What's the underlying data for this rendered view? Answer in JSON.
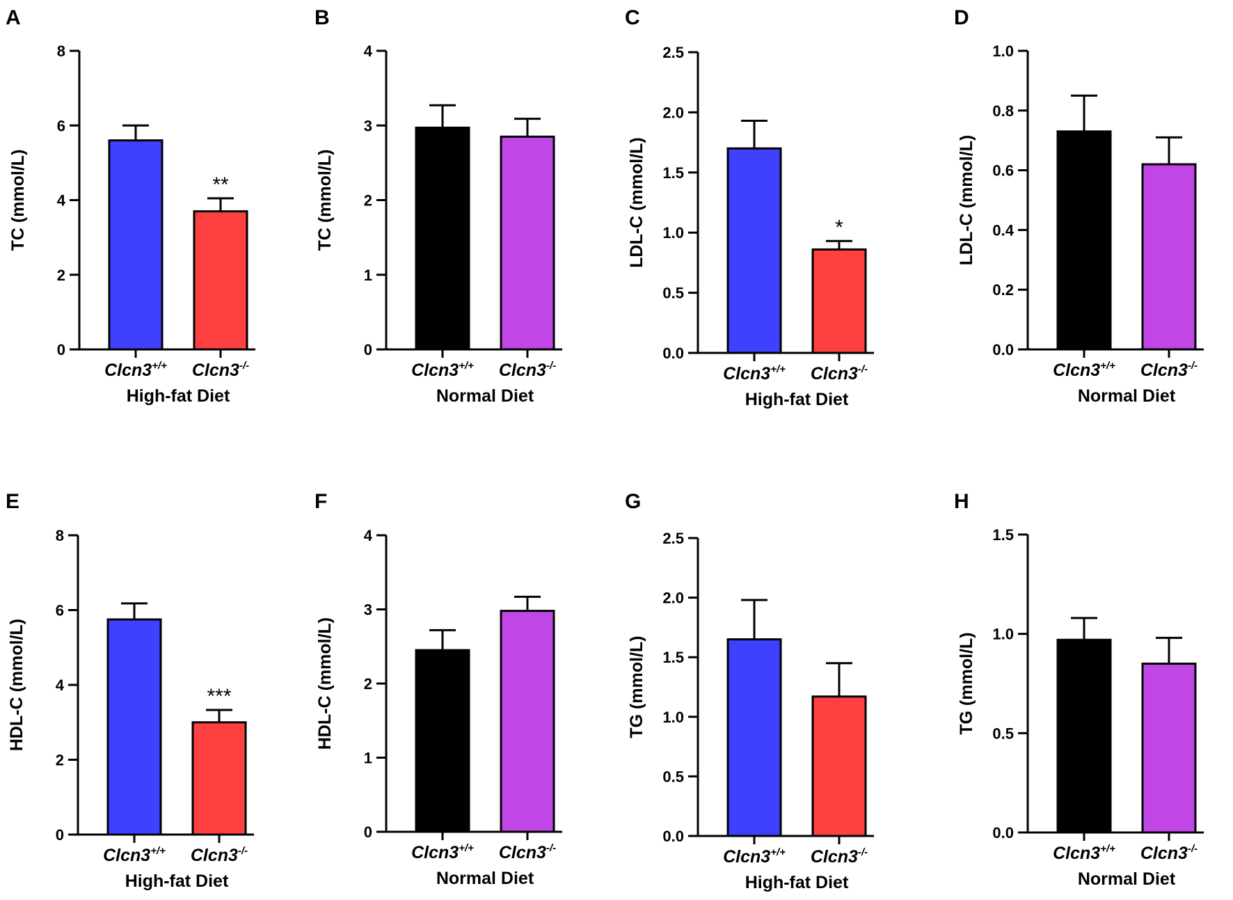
{
  "figure": {
    "colors": {
      "wt_hfd": "#4040ff",
      "ko_hfd": "#ff4040",
      "wt_nd": "#000000",
      "ko_nd": "#c046e6",
      "axis": "#000000"
    }
  },
  "chart_data": [
    {
      "panel": "A",
      "type": "bar",
      "ylabel": "TC (mmol/L)",
      "group": "High-fat Diet",
      "ylim": [
        0,
        8
      ],
      "yticks": [
        "0",
        "2",
        "4",
        "6",
        "8"
      ],
      "categories": [
        {
          "base": "Clcn3",
          "sup": "+/+",
          "value": 5.6,
          "error": 0.4,
          "color": "#4040ff",
          "sig": ""
        },
        {
          "base": "Clcn3",
          "sup": "-/-",
          "value": 3.7,
          "error": 0.35,
          "color": "#ff4040",
          "sig": "**"
        }
      ]
    },
    {
      "panel": "B",
      "type": "bar",
      "ylabel": "TC (mmol/L)",
      "group": "Normal Diet",
      "ylim": [
        0,
        4
      ],
      "yticks": [
        "0",
        "1",
        "2",
        "3",
        "4"
      ],
      "categories": [
        {
          "base": "Clcn3",
          "sup": "+/+",
          "value": 2.97,
          "error": 0.3,
          "color": "#000000",
          "sig": ""
        },
        {
          "base": "Clcn3",
          "sup": "-/-",
          "value": 2.85,
          "error": 0.24,
          "color": "#c046e6",
          "sig": ""
        }
      ]
    },
    {
      "panel": "C",
      "type": "bar",
      "ylabel": "LDL-C (mmol/L)",
      "group": "High-fat Diet",
      "ylim": [
        0,
        2.5
      ],
      "yticks": [
        "0.0",
        "0.5",
        "1.0",
        "1.5",
        "2.0",
        "2.5"
      ],
      "categories": [
        {
          "base": "Clcn3",
          "sup": "+/+",
          "value": 1.7,
          "error": 0.23,
          "color": "#4040ff",
          "sig": ""
        },
        {
          "base": "Clcn3",
          "sup": "-/-",
          "value": 0.86,
          "error": 0.07,
          "color": "#ff4040",
          "sig": "*"
        }
      ]
    },
    {
      "panel": "D",
      "type": "bar",
      "ylabel": "LDL-C (mmol/L)",
      "group": "Normal Diet",
      "ylim": [
        0,
        1.0
      ],
      "yticks": [
        "0.0",
        "0.2",
        "0.4",
        "0.6",
        "0.8",
        "1.0"
      ],
      "categories": [
        {
          "base": "Clcn3",
          "sup": "+/+",
          "value": 0.73,
          "error": 0.12,
          "color": "#000000",
          "sig": ""
        },
        {
          "base": "Clcn3",
          "sup": "-/-",
          "value": 0.62,
          "error": 0.09,
          "color": "#c046e6",
          "sig": ""
        }
      ]
    },
    {
      "panel": "E",
      "type": "bar",
      "ylabel": "HDL-C (mmol/L)",
      "group": "High-fat Diet",
      "ylim": [
        0,
        8
      ],
      "yticks": [
        "0",
        "2",
        "4",
        "6",
        "8"
      ],
      "categories": [
        {
          "base": "Clcn3",
          "sup": "+/+",
          "value": 5.75,
          "error": 0.43,
          "color": "#4040ff",
          "sig": ""
        },
        {
          "base": "Clcn3",
          "sup": "-/-",
          "value": 3.0,
          "error": 0.33,
          "color": "#ff4040",
          "sig": "***"
        }
      ]
    },
    {
      "panel": "F",
      "type": "bar",
      "ylabel": "HDL-C (mmol/L)",
      "group": "Normal Diet",
      "ylim": [
        0,
        4
      ],
      "yticks": [
        "0",
        "1",
        "2",
        "3",
        "4"
      ],
      "categories": [
        {
          "base": "Clcn3",
          "sup": "+/+",
          "value": 2.45,
          "error": 0.27,
          "color": "#000000",
          "sig": ""
        },
        {
          "base": "Clcn3",
          "sup": "-/-",
          "value": 2.98,
          "error": 0.19,
          "color": "#c046e6",
          "sig": ""
        }
      ]
    },
    {
      "panel": "G",
      "type": "bar",
      "ylabel": "TG (mmol/L)",
      "group": "High-fat Diet",
      "ylim": [
        0,
        2.5
      ],
      "yticks": [
        "0.0",
        "0.5",
        "1.0",
        "1.5",
        "2.0",
        "2.5"
      ],
      "categories": [
        {
          "base": "Clcn3",
          "sup": "+/+",
          "value": 1.65,
          "error": 0.33,
          "color": "#4040ff",
          "sig": ""
        },
        {
          "base": "Clcn3",
          "sup": "-/-",
          "value": 1.17,
          "error": 0.28,
          "color": "#ff4040",
          "sig": ""
        }
      ]
    },
    {
      "panel": "H",
      "type": "bar",
      "ylabel": "TG (mmol/L)",
      "group": "Normal Diet",
      "ylim": [
        0,
        1.5
      ],
      "yticks": [
        "0.0",
        "0.5",
        "1.0",
        "1.5"
      ],
      "categories": [
        {
          "base": "Clcn3",
          "sup": "+/+",
          "value": 0.97,
          "error": 0.11,
          "color": "#000000",
          "sig": ""
        },
        {
          "base": "Clcn3",
          "sup": "-/-",
          "value": 0.85,
          "error": 0.13,
          "color": "#c046e6",
          "sig": ""
        }
      ]
    }
  ]
}
